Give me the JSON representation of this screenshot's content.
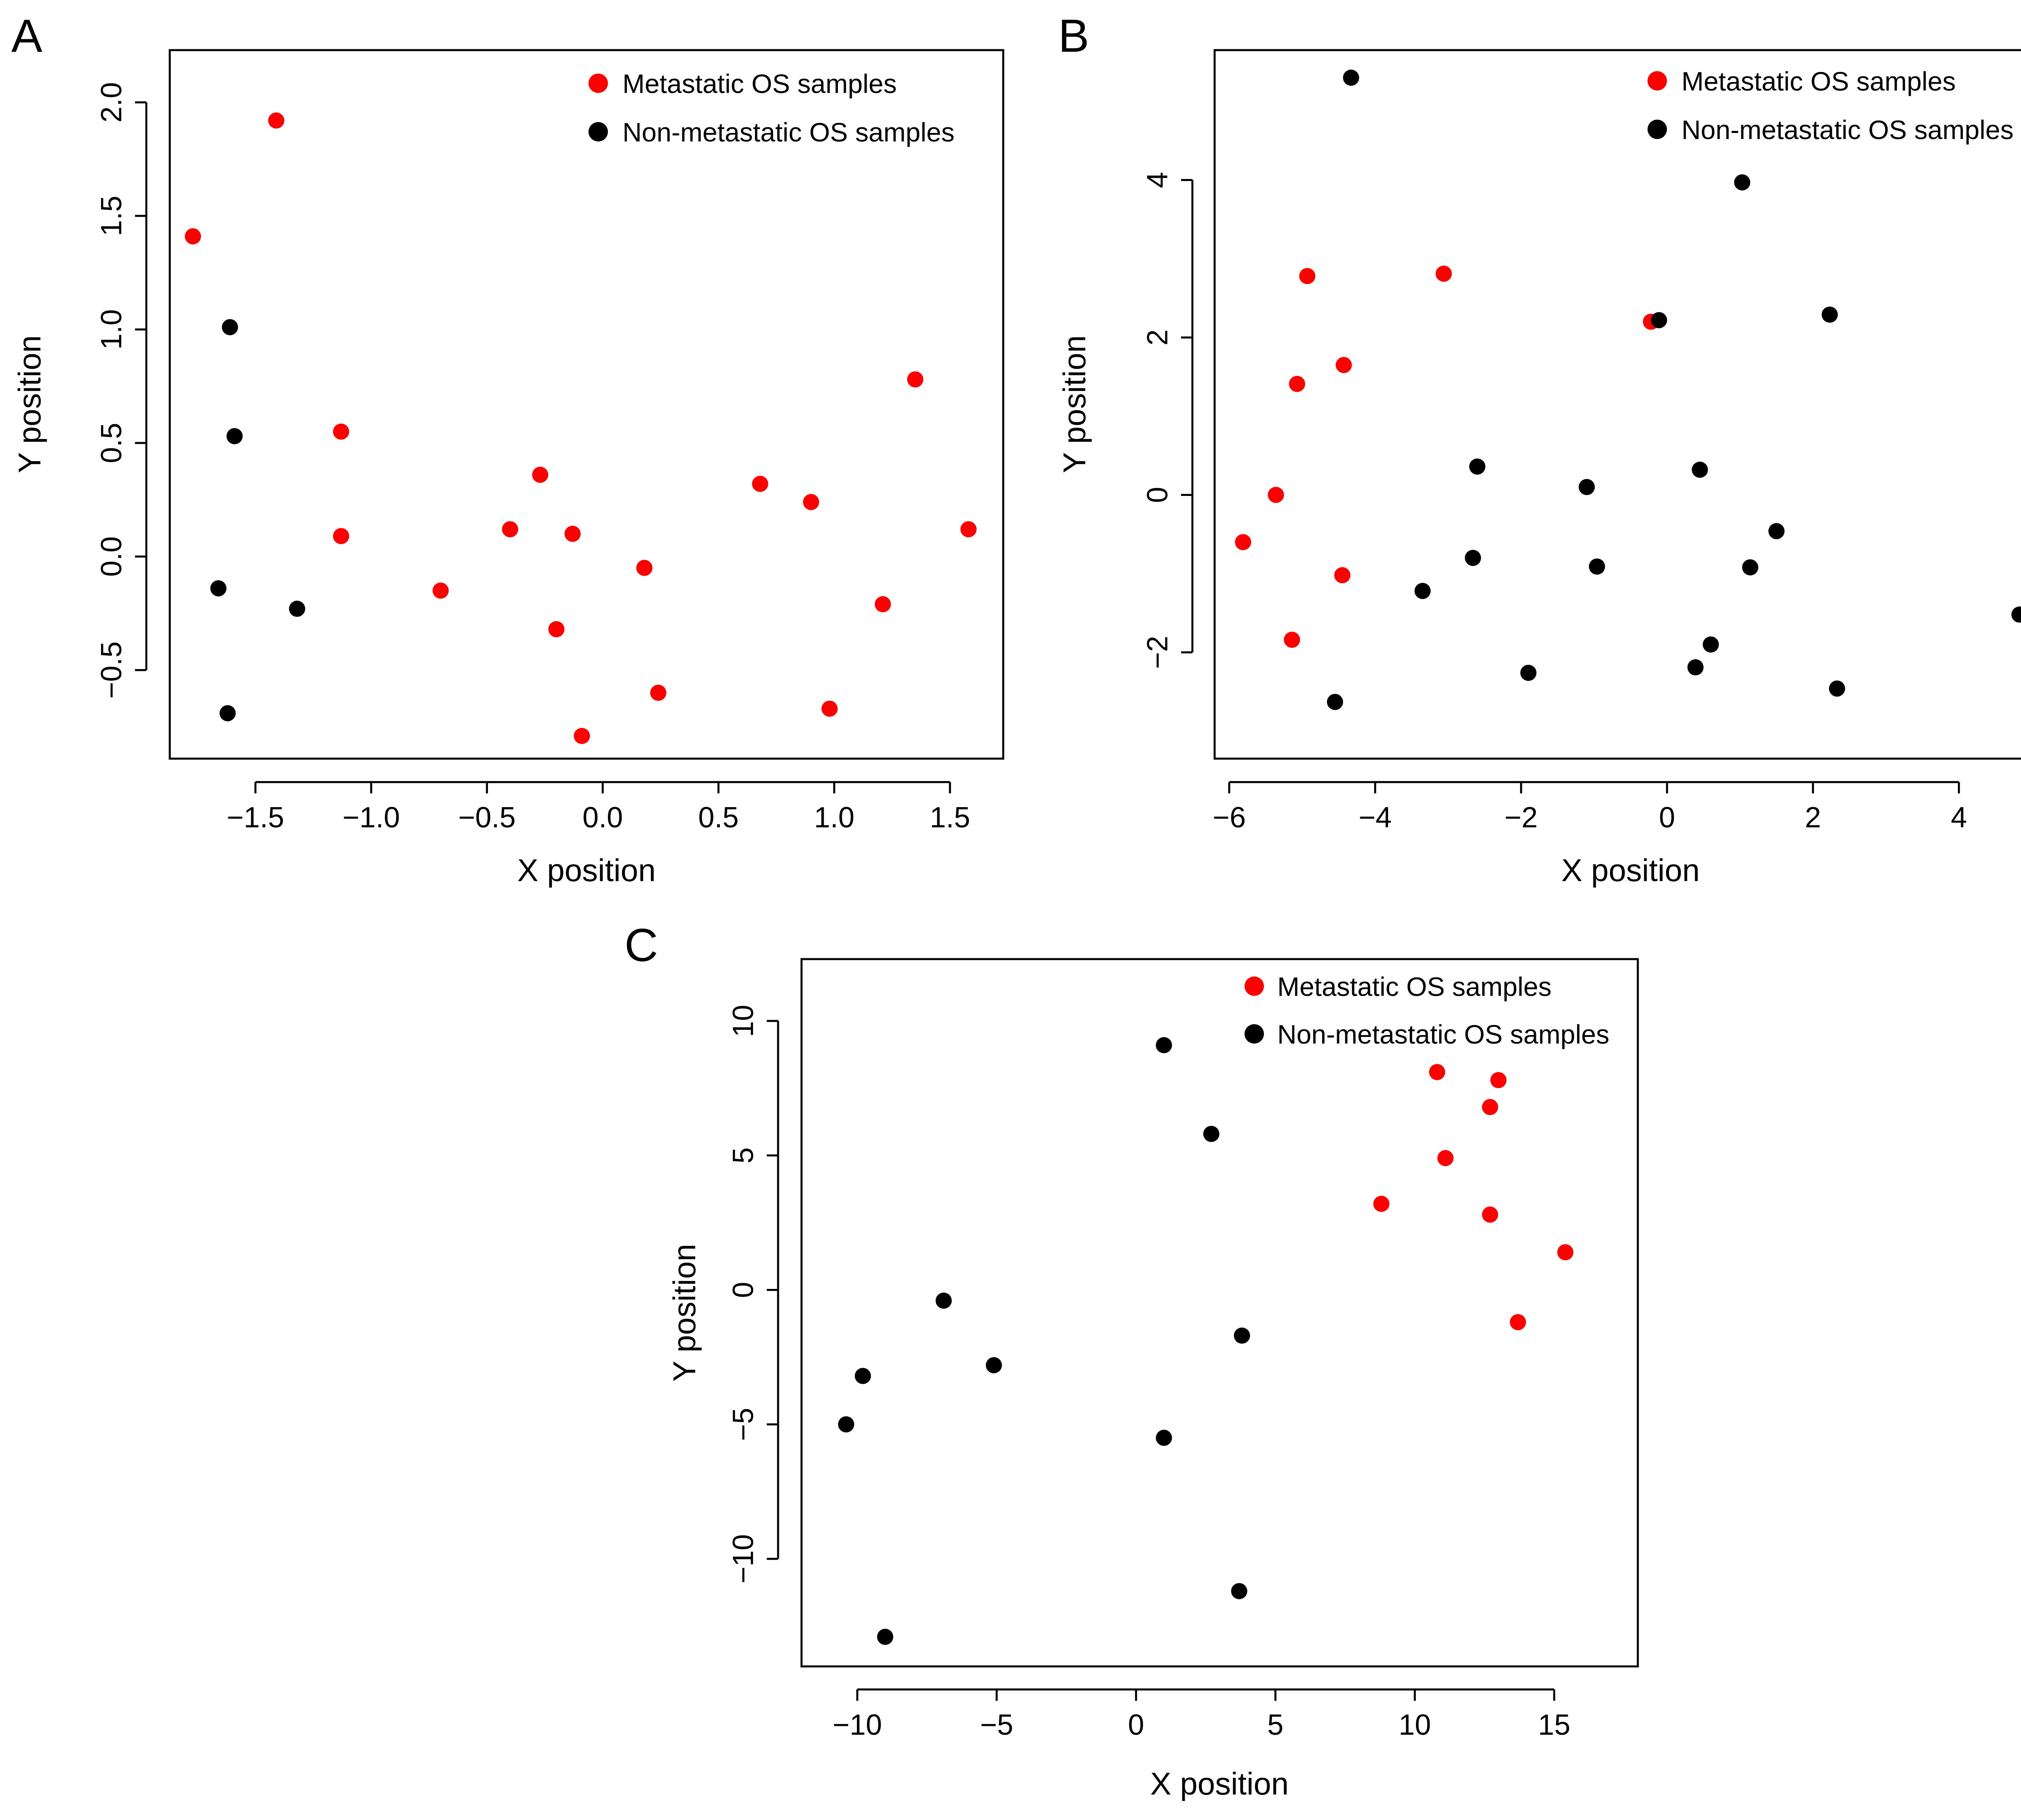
{
  "colors": {
    "metastatic": "#ff0000",
    "non_metastatic": "#000000"
  },
  "chart_data": [
    {
      "panel": "A",
      "type": "scatter",
      "title": "",
      "xlabel": "X position",
      "ylabel": "Y position",
      "xlim": [
        -1.87,
        1.73
      ],
      "ylim": [
        -0.89,
        2.23
      ],
      "xticks": [
        -1.5,
        -1.0,
        -0.5,
        0.0,
        0.5,
        1.0,
        1.5
      ],
      "xtick_labels": [
        "−1.5",
        "−1.0",
        "−0.5",
        "0.0",
        "0.5",
        "1.0",
        "1.5"
      ],
      "yticks": [
        -0.5,
        0.0,
        0.5,
        1.0,
        1.5,
        2.0
      ],
      "ytick_labels": [
        "−0.5",
        "0.0",
        "0.5",
        "1.0",
        "1.5",
        "2.0"
      ],
      "legend": {
        "position": "top-right",
        "entries": [
          "Metastatic OS samples",
          "Non-metastatic OS samples"
        ]
      },
      "series": [
        {
          "name": "Metastatic OS samples",
          "color": "#ff0000",
          "points": [
            [
              -1.41,
              1.92
            ],
            [
              -1.77,
              1.41
            ],
            [
              -1.13,
              0.55
            ],
            [
              -1.13,
              0.09
            ],
            [
              -0.7,
              -0.15
            ],
            [
              -0.4,
              0.12
            ],
            [
              -0.27,
              0.36
            ],
            [
              -0.2,
              -0.32
            ],
            [
              -0.13,
              0.1
            ],
            [
              -0.09,
              -0.79
            ],
            [
              0.18,
              -0.05
            ],
            [
              0.24,
              -0.6
            ],
            [
              0.68,
              0.32
            ],
            [
              0.9,
              0.24
            ],
            [
              0.98,
              -0.67
            ],
            [
              1.21,
              -0.21
            ],
            [
              1.35,
              0.78
            ],
            [
              1.58,
              0.12
            ]
          ]
        },
        {
          "name": "Non-metastatic OS samples",
          "color": "#000000",
          "points": [
            [
              -1.61,
              1.01
            ],
            [
              -1.59,
              0.53
            ],
            [
              -1.66,
              -0.14
            ],
            [
              -1.32,
              -0.23
            ],
            [
              -1.62,
              -0.69
            ]
          ]
        }
      ]
    },
    {
      "panel": "B",
      "type": "scatter",
      "title": "",
      "xlabel": "X position",
      "ylabel": "Y position",
      "xlim": [
        -6.2,
        5.2
      ],
      "ylim": [
        -3.35,
        5.65
      ],
      "xticks": [
        -6,
        -4,
        -2,
        0,
        2,
        4
      ],
      "xtick_labels": [
        "−6",
        "−4",
        "−2",
        "0",
        "2",
        "4"
      ],
      "yticks": [
        -2,
        0,
        2,
        4
      ],
      "ytick_labels": [
        "−2",
        "0",
        "2",
        "4"
      ],
      "legend": {
        "position": "top-right",
        "entries": [
          "Metastatic OS samples",
          "Non-metastatic OS samples"
        ]
      },
      "series": [
        {
          "name": "Metastatic OS samples",
          "color": "#ff0000",
          "points": [
            [
              -4.93,
              2.78
            ],
            [
              -3.06,
              2.81
            ],
            [
              -5.07,
              1.41
            ],
            [
              -4.43,
              1.65
            ],
            [
              -5.36,
              0.0
            ],
            [
              -5.81,
              -0.6
            ],
            [
              -4.45,
              -1.02
            ],
            [
              -5.14,
              -1.84
            ],
            [
              -0.22,
              2.2
            ]
          ]
        },
        {
          "name": "Non-metastatic OS samples",
          "color": "#000000",
          "points": [
            [
              -4.33,
              5.3
            ],
            [
              1.03,
              3.97
            ],
            [
              -0.11,
              2.22
            ],
            [
              2.23,
              2.29
            ],
            [
              -2.6,
              0.36
            ],
            [
              -1.1,
              0.1
            ],
            [
              0.45,
              0.32
            ],
            [
              -2.66,
              -0.8
            ],
            [
              -0.96,
              -0.91
            ],
            [
              -3.35,
              -1.22
            ],
            [
              1.5,
              -0.46
            ],
            [
              1.14,
              -0.92
            ],
            [
              -1.9,
              -2.26
            ],
            [
              0.6,
              -1.9
            ],
            [
              0.39,
              -2.19
            ],
            [
              -4.55,
              -2.63
            ],
            [
              2.33,
              -2.46
            ],
            [
              4.83,
              -1.52
            ]
          ]
        }
      ]
    },
    {
      "panel": "C",
      "type": "scatter",
      "title": "",
      "xlabel": "X position",
      "ylabel": "Y position",
      "xlim": [
        -12.0,
        18.0
      ],
      "ylim": [
        -14.0,
        12.3
      ],
      "xticks": [
        -10,
        -5,
        0,
        5,
        10,
        15
      ],
      "xtick_labels": [
        "−10",
        "−5",
        "0",
        "5",
        "10",
        "15"
      ],
      "yticks": [
        -10,
        -5,
        0,
        5,
        10
      ],
      "ytick_labels": [
        "−10",
        "−5",
        "0",
        "5",
        "10"
      ],
      "legend": {
        "position": "top-right",
        "entries": [
          "Metastatic OS samples",
          "Non-metastatic OS samples"
        ]
      },
      "series": [
        {
          "name": "Metastatic OS samples",
          "color": "#ff0000",
          "points": [
            [
              10.8,
              8.1
            ],
            [
              13.0,
              7.8
            ],
            [
              12.7,
              6.8
            ],
            [
              11.1,
              4.9
            ],
            [
              8.8,
              3.2
            ],
            [
              12.7,
              2.8
            ],
            [
              15.4,
              1.4
            ],
            [
              13.7,
              -1.2
            ]
          ]
        },
        {
          "name": "Non-metastatic OS samples",
          "color": "#000000",
          "points": [
            [
              1.0,
              9.1
            ],
            [
              2.7,
              5.8
            ],
            [
              -6.9,
              -0.4
            ],
            [
              -5.1,
              -2.8
            ],
            [
              3.8,
              -1.7
            ],
            [
              -9.8,
              -3.2
            ],
            [
              -10.4,
              -5.0
            ],
            [
              1.0,
              -5.5
            ],
            [
              3.7,
              -11.2
            ],
            [
              -9.0,
              -12.9
            ]
          ]
        }
      ]
    }
  ]
}
